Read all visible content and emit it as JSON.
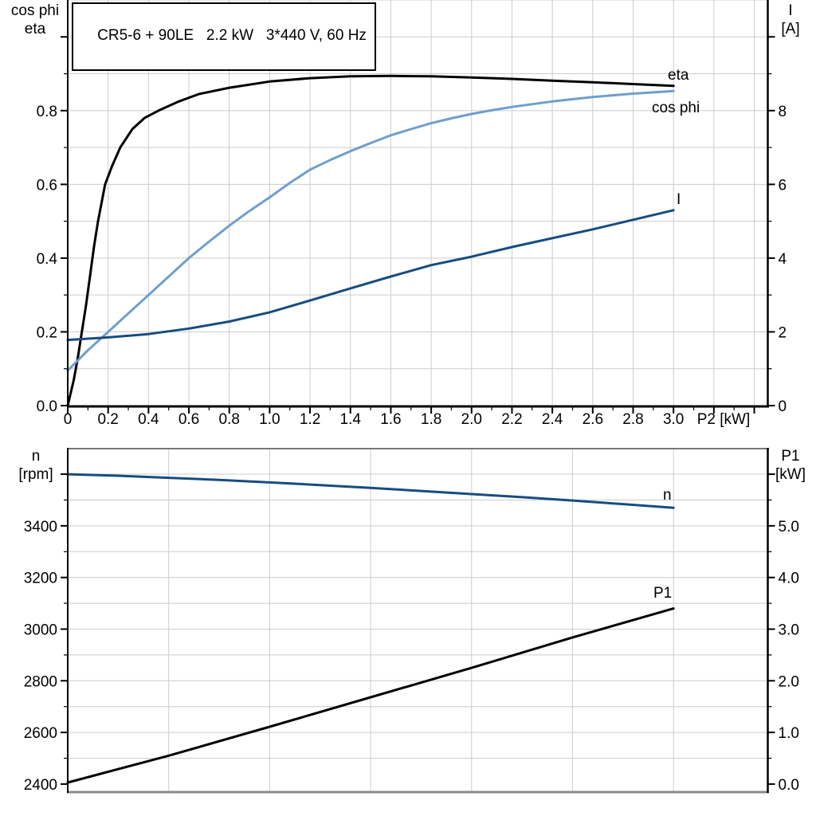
{
  "title_box": {
    "text": "CR5-6 + 90LE   2.2 kW   3*440 V, 60 Hz"
  },
  "chart_data": [
    {
      "id": "motor-electrical-chart",
      "type": "line",
      "x_axis": {
        "label": "P2 [kW]",
        "min": 0,
        "max": 3.465,
        "grid_step": 0.2,
        "major_tick_step": 0.2,
        "minor_tick_step": 0.1,
        "tick_values": [
          0,
          0.2,
          0.4,
          0.6,
          0.8,
          1.0,
          1.2,
          1.4,
          1.6,
          1.8,
          2.0,
          2.2,
          2.4,
          2.6,
          2.8,
          3.0
        ],
        "tick_labels": [
          "0",
          "0.2",
          "0.4",
          "0.6",
          "0.8",
          "1.0",
          "1.2",
          "1.4",
          "1.6",
          "1.8",
          "2.0",
          "2.2",
          "2.4",
          "2.6",
          "2.8",
          "3.0"
        ]
      },
      "y_left": {
        "label_lines": [
          "cos phi",
          "eta"
        ],
        "min": 0,
        "max": 1.1,
        "grid_step": 0.1,
        "minor_tick_step": 0.1,
        "tick_values": [
          0,
          0.2,
          0.4,
          0.6,
          0.8,
          1.0
        ],
        "tick_labels": [
          "0.0",
          "0.2",
          "0.4",
          "0.6",
          "0.8",
          ""
        ]
      },
      "y_right": {
        "label_lines": [
          "I",
          "[A]"
        ],
        "min": 0,
        "max": 11,
        "minor_tick_step": 1,
        "tick_values": [
          0,
          2,
          4,
          6,
          8,
          10
        ],
        "tick_labels": [
          "0",
          "2",
          "4",
          "6",
          "8",
          ""
        ]
      },
      "series": [
        {
          "name": "eta",
          "axis": "left",
          "color": "#000000",
          "points": [
            [
              0,
              0
            ],
            [
              0.03,
              0.07
            ],
            [
              0.05,
              0.13
            ],
            [
              0.07,
              0.2
            ],
            [
              0.09,
              0.27
            ],
            [
              0.11,
              0.35
            ],
            [
              0.13,
              0.43
            ],
            [
              0.15,
              0.5
            ],
            [
              0.185,
              0.6
            ],
            [
              0.22,
              0.65
            ],
            [
              0.26,
              0.7
            ],
            [
              0.32,
              0.75
            ],
            [
              0.38,
              0.78
            ],
            [
              0.45,
              0.8
            ],
            [
              0.55,
              0.825
            ],
            [
              0.65,
              0.845
            ],
            [
              0.8,
              0.862
            ],
            [
              1.0,
              0.879
            ],
            [
              1.2,
              0.888
            ],
            [
              1.4,
              0.893
            ],
            [
              1.6,
              0.894
            ],
            [
              1.8,
              0.893
            ],
            [
              2.0,
              0.89
            ],
            [
              2.2,
              0.886
            ],
            [
              2.4,
              0.881
            ],
            [
              2.6,
              0.877
            ],
            [
              2.8,
              0.872
            ],
            [
              3.0,
              0.867
            ]
          ]
        },
        {
          "name": "cos phi",
          "axis": "left",
          "color": "#6f9fcc",
          "points": [
            [
              0,
              0.095
            ],
            [
              0.1,
              0.15
            ],
            [
              0.2,
              0.2
            ],
            [
              0.3,
              0.25
            ],
            [
              0.4,
              0.3
            ],
            [
              0.5,
              0.35
            ],
            [
              0.6,
              0.4
            ],
            [
              0.7,
              0.445
            ],
            [
              0.8,
              0.488
            ],
            [
              0.9,
              0.528
            ],
            [
              1.0,
              0.565
            ],
            [
              1.1,
              0.604
            ],
            [
              1.2,
              0.64
            ],
            [
              1.3,
              0.666
            ],
            [
              1.4,
              0.69
            ],
            [
              1.5,
              0.712
            ],
            [
              1.6,
              0.733
            ],
            [
              1.7,
              0.75
            ],
            [
              1.8,
              0.766
            ],
            [
              1.9,
              0.779
            ],
            [
              2.0,
              0.791
            ],
            [
              2.1,
              0.801
            ],
            [
              2.2,
              0.81
            ],
            [
              2.4,
              0.825
            ],
            [
              2.6,
              0.837
            ],
            [
              2.8,
              0.846
            ],
            [
              3.0,
              0.853
            ]
          ]
        },
        {
          "name": "I",
          "axis": "right",
          "color": "#174c80",
          "points": [
            [
              0,
              1.78
            ],
            [
              0.2,
              1.85
            ],
            [
              0.4,
              1.94
            ],
            [
              0.6,
              2.09
            ],
            [
              0.8,
              2.28
            ],
            [
              1.0,
              2.53
            ],
            [
              1.2,
              2.85
            ],
            [
              1.4,
              3.18
            ],
            [
              1.6,
              3.5
            ],
            [
              1.8,
              3.81
            ],
            [
              2.0,
              4.04
            ],
            [
              2.2,
              4.3
            ],
            [
              2.4,
              4.54
            ],
            [
              2.6,
              4.78
            ],
            [
              2.8,
              5.04
            ],
            [
              3.0,
              5.3
            ]
          ]
        }
      ]
    },
    {
      "id": "motor-mechanical-chart",
      "type": "line",
      "x_axis": {
        "label": "",
        "min": 0,
        "max": 3.465,
        "grid_step": 0.5
      },
      "y_left": {
        "label_lines": [
          "n",
          "[rpm]"
        ],
        "min": 2372,
        "max": 3702,
        "grid_step": 100,
        "minor_tick_step": 100,
        "tick_values": [
          2400,
          2600,
          2800,
          3000,
          3200,
          3400,
          3600
        ],
        "tick_labels": [
          "2400",
          "2600",
          "2800",
          "3000",
          "3200",
          "3400",
          ""
        ]
      },
      "y_right": {
        "label_lines": [
          "P1",
          "[kW]"
        ],
        "min": -0.14,
        "max": 6.51,
        "minor_tick_step": 0.5,
        "tick_values": [
          0,
          1,
          2,
          3,
          4,
          5,
          6
        ],
        "tick_labels": [
          "0.0",
          "1.0",
          "2.0",
          "3.0",
          "4.0",
          "5.0",
          ""
        ]
      },
      "series": [
        {
          "name": "n",
          "axis": "left",
          "color": "#174c80",
          "points": [
            [
              0,
              3600
            ],
            [
              0.25,
              3594
            ],
            [
              0.5,
              3586
            ],
            [
              0.75,
              3578
            ],
            [
              1.0,
              3568
            ],
            [
              1.25,
              3558
            ],
            [
              1.5,
              3547
            ],
            [
              1.75,
              3535
            ],
            [
              2.0,
              3523
            ],
            [
              2.25,
              3511
            ],
            [
              2.5,
              3498
            ],
            [
              2.75,
              3484
            ],
            [
              3.0,
              3470
            ]
          ]
        },
        {
          "name": "P1",
          "axis": "right",
          "color": "#000000",
          "points": [
            [
              0,
              0.03
            ],
            [
              0.5,
              0.55
            ],
            [
              1.0,
              1.11
            ],
            [
              1.5,
              1.68
            ],
            [
              2.0,
              2.25
            ],
            [
              2.5,
              2.84
            ],
            [
              3.0,
              3.4
            ]
          ]
        }
      ]
    }
  ]
}
